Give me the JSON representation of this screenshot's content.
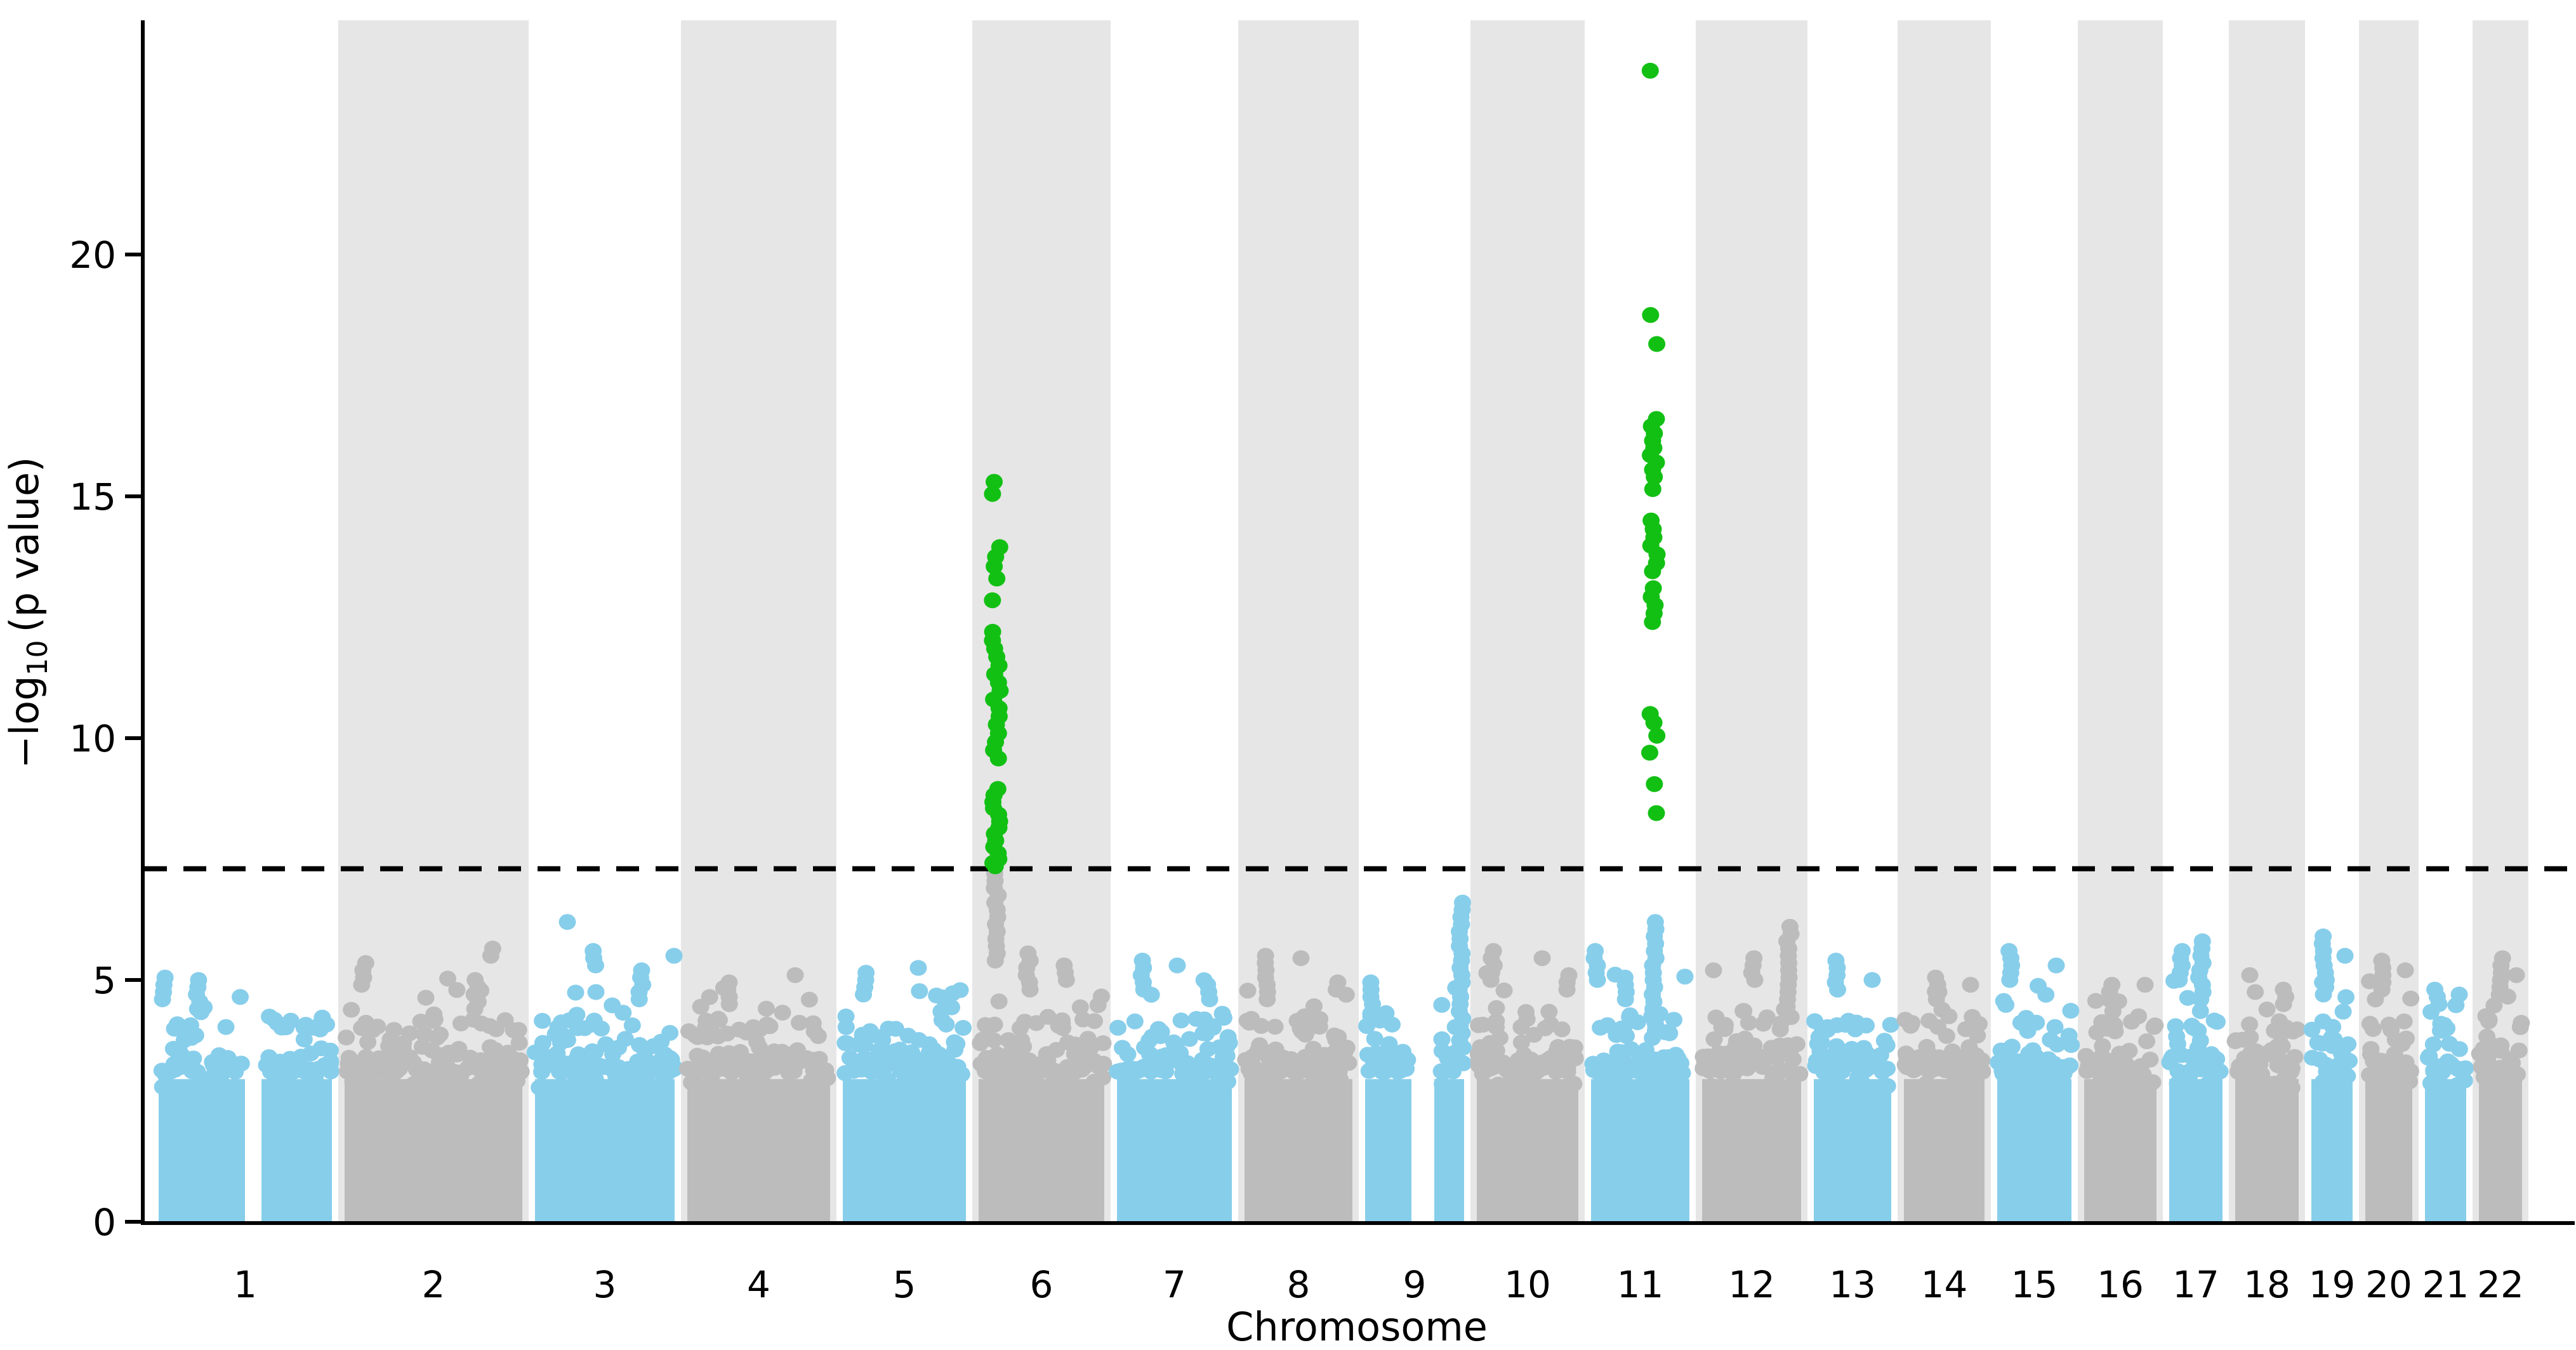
{
  "chart_data": {
    "type": "scatter",
    "subtype": "manhattan-gwas-plot",
    "title": "",
    "xlabel": "Chromosome",
    "ylabel": "−log₁₀ (p value)",
    "ylabel_parts": {
      "prefix": "−log",
      "sub": "10",
      "suffix": "(p value)"
    },
    "yticks": [
      0,
      5,
      10,
      15,
      20
    ],
    "ylim": [
      0,
      24.8
    ],
    "grid": false,
    "legend": "none",
    "threshold_line": {
      "value": 7.3,
      "style": "dashed",
      "color": "#000000"
    },
    "colors": {
      "odd_chromosome_points": "#87CEEB",
      "even_chromosome_points": "#BCBCBC",
      "significant_points": "#12C014",
      "band_background": "#E6E6E6",
      "axis": "#000000",
      "background": "#FFFFFF"
    },
    "chromosomes": [
      {
        "label": "1",
        "x0": 240,
        "x1": 533,
        "band": false,
        "color": "#87CEEB",
        "scatter_max": 4.9,
        "gaps": [
          [
            386,
            412
          ]
        ],
        "spikes": [
          {
            "x": 257,
            "top": 5.15,
            "base": 4.6
          },
          {
            "x": 312,
            "top": 5.1,
            "base": 4.4
          }
        ]
      },
      {
        "label": "2",
        "x0": 533,
        "x1": 833,
        "band": true,
        "color": "#BCBCBC",
        "scatter_max": 5.1,
        "spikes": [
          {
            "x": 573,
            "top": 5.4,
            "base": 4.9
          },
          {
            "x": 750,
            "top": 5.0,
            "base": 4.4
          },
          {
            "x": 776,
            "top": 5.65,
            "base": 5.5
          }
        ]
      },
      {
        "label": "3",
        "x0": 833,
        "x1": 1073,
        "band": false,
        "color": "#87CEEB",
        "scatter_max": 5.2,
        "spikes": [
          {
            "x": 894,
            "top": 6.2,
            "base": 6.2
          },
          {
            "x": 937,
            "top": 5.6,
            "base": 5.3
          },
          {
            "x": 1010,
            "top": 5.3,
            "base": 4.6
          },
          {
            "x": 1062,
            "top": 5.5,
            "base": 5.5
          }
        ]
      },
      {
        "label": "4",
        "x0": 1073,
        "x1": 1318,
        "band": true,
        "color": "#BCBCBC",
        "scatter_max": 4.9,
        "spikes": [
          {
            "x": 1150,
            "top": 5.0,
            "base": 4.5
          },
          {
            "x": 1253,
            "top": 5.1,
            "base": 5.1
          }
        ]
      },
      {
        "label": "5",
        "x0": 1318,
        "x1": 1532,
        "band": false,
        "color": "#87CEEB",
        "scatter_max": 4.9,
        "spikes": [
          {
            "x": 1362,
            "top": 5.2,
            "base": 4.7
          },
          {
            "x": 1447,
            "top": 5.25,
            "base": 5.25
          }
        ]
      },
      {
        "label": "6",
        "x0": 1532,
        "x1": 1750,
        "band": true,
        "color": "#BCBCBC",
        "scatter_max": 5.2,
        "spikes": [
          {
            "x": 1570,
            "top": 7.25,
            "base": 5.4
          },
          {
            "x": 1620,
            "top": 5.6,
            "base": 4.8
          },
          {
            "x": 1680,
            "top": 5.3,
            "base": 5.0
          }
        ]
      },
      {
        "label": "7",
        "x0": 1750,
        "x1": 1951,
        "band": false,
        "color": "#87CEEB",
        "scatter_max": 5.0,
        "spikes": [
          {
            "x": 1800,
            "top": 5.5,
            "base": 4.8
          },
          {
            "x": 1855,
            "top": 5.3,
            "base": 5.3
          },
          {
            "x": 1905,
            "top": 5.0,
            "base": 4.6
          }
        ]
      },
      {
        "label": "8",
        "x0": 1951,
        "x1": 2141,
        "band": true,
        "color": "#BCBCBC",
        "scatter_max": 5.1,
        "spikes": [
          {
            "x": 1996,
            "top": 5.6,
            "base": 4.6
          },
          {
            "x": 2050,
            "top": 5.45,
            "base": 5.45
          },
          {
            "x": 2105,
            "top": 5.0,
            "base": 4.8
          }
        ]
      },
      {
        "label": "9",
        "x0": 2141,
        "x1": 2317,
        "band": false,
        "color": "#87CEEB",
        "scatter_max": 5.0,
        "gaps": [
          [
            2224,
            2260
          ]
        ],
        "spikes": [
          {
            "x": 2160,
            "top": 5.0,
            "base": 4.5
          },
          {
            "x": 2302,
            "top": 6.7,
            "base": 3.6
          }
        ]
      },
      {
        "label": "10",
        "x0": 2317,
        "x1": 2497,
        "band": true,
        "color": "#BCBCBC",
        "scatter_max": 5.2,
        "spikes": [
          {
            "x": 2352,
            "top": 5.6,
            "base": 5.0
          },
          {
            "x": 2430,
            "top": 5.45,
            "base": 5.45
          },
          {
            "x": 2470,
            "top": 5.2,
            "base": 4.8
          }
        ]
      },
      {
        "label": "11",
        "x0": 2497,
        "x1": 2672,
        "band": false,
        "color": "#87CEEB",
        "scatter_max": 5.3,
        "spikes": [
          {
            "x": 2515,
            "top": 5.7,
            "base": 5.0
          },
          {
            "x": 2560,
            "top": 5.15,
            "base": 4.6
          },
          {
            "x": 2606,
            "top": 6.2,
            "base": 3.8
          }
        ]
      },
      {
        "label": "12",
        "x0": 2672,
        "x1": 2848,
        "band": true,
        "color": "#BCBCBC",
        "scatter_max": 5.3,
        "spikes": [
          {
            "x": 2700,
            "top": 5.2,
            "base": 5.2
          },
          {
            "x": 2762,
            "top": 5.5,
            "base": 5.0
          },
          {
            "x": 2819,
            "top": 6.1,
            "base": 4.3
          }
        ]
      },
      {
        "label": "13",
        "x0": 2848,
        "x1": 2990,
        "band": false,
        "color": "#87CEEB",
        "scatter_max": 4.9,
        "spikes": [
          {
            "x": 2895,
            "top": 5.4,
            "base": 4.8
          },
          {
            "x": 2950,
            "top": 5.0,
            "base": 5.0
          }
        ]
      },
      {
        "label": "14",
        "x0": 2990,
        "x1": 3137,
        "band": true,
        "color": "#BCBCBC",
        "scatter_max": 4.8,
        "spikes": [
          {
            "x": 3052,
            "top": 5.1,
            "base": 4.6
          },
          {
            "x": 3105,
            "top": 4.9,
            "base": 4.9
          }
        ]
      },
      {
        "label": "15",
        "x0": 3137,
        "x1": 3274,
        "band": false,
        "color": "#87CEEB",
        "scatter_max": 5.0,
        "spikes": [
          {
            "x": 3168,
            "top": 5.6,
            "base": 5.0
          },
          {
            "x": 3240,
            "top": 5.3,
            "base": 5.3
          }
        ]
      },
      {
        "label": "16",
        "x0": 3274,
        "x1": 3408,
        "band": true,
        "color": "#BCBCBC",
        "scatter_max": 4.7,
        "spikes": [
          {
            "x": 3325,
            "top": 5.0,
            "base": 4.6
          },
          {
            "x": 3380,
            "top": 4.9,
            "base": 4.9
          }
        ]
      },
      {
        "label": "17",
        "x0": 3408,
        "x1": 3512,
        "band": false,
        "color": "#87CEEB",
        "scatter_max": 5.2,
        "spikes": [
          {
            "x": 3435,
            "top": 5.6,
            "base": 5.0
          },
          {
            "x": 3468,
            "top": 5.9,
            "base": 4.6
          }
        ]
      },
      {
        "label": "18",
        "x0": 3512,
        "x1": 3632,
        "band": true,
        "color": "#BCBCBC",
        "scatter_max": 4.8,
        "spikes": [
          {
            "x": 3545,
            "top": 5.1,
            "base": 5.1
          },
          {
            "x": 3600,
            "top": 4.9,
            "base": 4.5
          }
        ]
      },
      {
        "label": "19",
        "x0": 3632,
        "x1": 3717,
        "band": false,
        "color": "#87CEEB",
        "scatter_max": 5.3,
        "spikes": [
          {
            "x": 3662,
            "top": 5.9,
            "base": 4.7
          },
          {
            "x": 3695,
            "top": 5.5,
            "base": 5.5
          }
        ]
      },
      {
        "label": "20",
        "x0": 3717,
        "x1": 3811,
        "band": true,
        "color": "#BCBCBC",
        "scatter_max": 5.0,
        "spikes": [
          {
            "x": 3752,
            "top": 5.5,
            "base": 4.8
          },
          {
            "x": 3790,
            "top": 5.2,
            "base": 5.2
          }
        ]
      },
      {
        "label": "21",
        "x0": 3811,
        "x1": 3896,
        "band": false,
        "color": "#87CEEB",
        "scatter_max": 4.6,
        "spikes": [
          {
            "x": 3840,
            "top": 4.9,
            "base": 4.5
          },
          {
            "x": 3875,
            "top": 4.7,
            "base": 4.7
          }
        ]
      },
      {
        "label": "22",
        "x0": 3896,
        "x1": 3984,
        "band": true,
        "color": "#BCBCBC",
        "scatter_max": 5.0,
        "spikes": [
          {
            "x": 3940,
            "top": 5.5,
            "base": 4.7
          },
          {
            "x": 3965,
            "top": 5.1,
            "base": 5.1
          }
        ]
      }
    ],
    "significant_loci": [
      {
        "chromosome": "6",
        "x": 1570,
        "color": "#12C014",
        "values": [
          15.3,
          15.05,
          13.95,
          13.75,
          13.55,
          13.3,
          12.85,
          12.2,
          12.02,
          11.85,
          11.68,
          11.5,
          11.32,
          11.15,
          10.98,
          10.8,
          10.62,
          10.45,
          10.28,
          10.1,
          9.92,
          9.75,
          9.58,
          8.95,
          8.82,
          8.68,
          8.55,
          8.42,
          8.28,
          8.15,
          8.02,
          7.88,
          7.75,
          7.62,
          7.5,
          7.42,
          7.35
        ]
      },
      {
        "chromosome": "11",
        "x": 2606,
        "color": "#12C014",
        "values": [
          23.8,
          18.75,
          18.15,
          16.6,
          16.45,
          16.3,
          16.15,
          16.0,
          15.85,
          15.7,
          15.55,
          15.4,
          15.15,
          14.5,
          14.32,
          14.15,
          13.98,
          13.8,
          13.62,
          13.45,
          13.1,
          12.92,
          12.75,
          12.58,
          12.4,
          10.5,
          10.32,
          10.05,
          9.7,
          9.05,
          8.45
        ]
      }
    ]
  }
}
